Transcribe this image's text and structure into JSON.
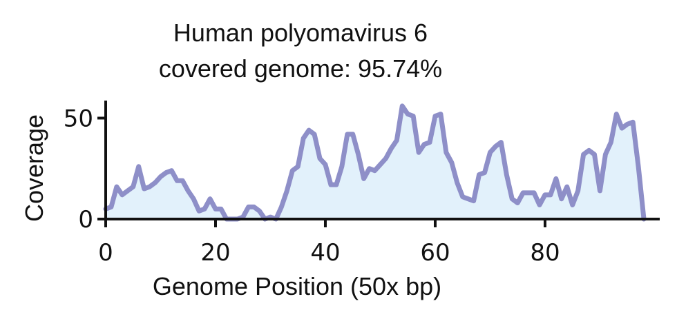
{
  "chart_data": {
    "type": "area",
    "title": [
      "Human polyomavirus 6",
      "covered genome: 95.74%"
    ],
    "xlabel": "Genome Position (50x bp)",
    "ylabel": "Coverage",
    "xlim": [
      0,
      99
    ],
    "ylim": [
      0,
      58
    ],
    "xticks": [
      0,
      20,
      40,
      60,
      80
    ],
    "yticks": [
      0,
      50
    ],
    "grid": false,
    "colors": {
      "line": "#8e8fc8",
      "fill": "#e2f1fb"
    },
    "series": [
      {
        "x": [
          0,
          1,
          2,
          3,
          4,
          5,
          6,
          7,
          8,
          9,
          10,
          11,
          12,
          13,
          14,
          15,
          16,
          17,
          18,
          19,
          20,
          21,
          22,
          23,
          24,
          25,
          26,
          27,
          28,
          29,
          30,
          31,
          32,
          33,
          34,
          35,
          36,
          37,
          38,
          39,
          40,
          41,
          42,
          43,
          44,
          45,
          46,
          47,
          48,
          49,
          50,
          51,
          52,
          53,
          54,
          55,
          56,
          57,
          58,
          59,
          60,
          61,
          62,
          63,
          64,
          65,
          66,
          67,
          68,
          69,
          70,
          71,
          72,
          73,
          74,
          75,
          76,
          77,
          78,
          79,
          80,
          81,
          82,
          83,
          84,
          85,
          86,
          87,
          88,
          89,
          90,
          91,
          92,
          93,
          94,
          95,
          96,
          97,
          98
        ],
        "values": [
          5,
          6,
          16,
          12,
          14,
          16,
          26,
          15,
          16,
          18,
          21,
          23,
          24,
          19,
          19,
          14,
          10,
          4,
          5,
          10,
          5,
          5,
          0,
          0,
          0,
          1,
          6,
          6,
          4,
          0,
          1,
          0,
          6,
          14,
          24,
          26,
          40,
          44,
          42,
          30,
          27,
          17,
          17,
          26,
          42,
          42,
          32,
          20,
          25,
          24,
          27,
          30,
          35,
          39,
          56,
          52,
          51,
          33,
          37,
          38,
          51,
          52,
          33,
          28,
          18,
          11,
          10,
          9,
          22,
          23,
          33,
          36,
          38,
          22,
          10,
          8,
          13,
          13,
          13,
          7,
          12,
          12,
          20,
          10,
          16,
          7,
          14,
          32,
          34,
          32,
          14,
          32,
          38,
          52,
          45,
          47,
          48,
          26,
          0
        ]
      }
    ]
  }
}
